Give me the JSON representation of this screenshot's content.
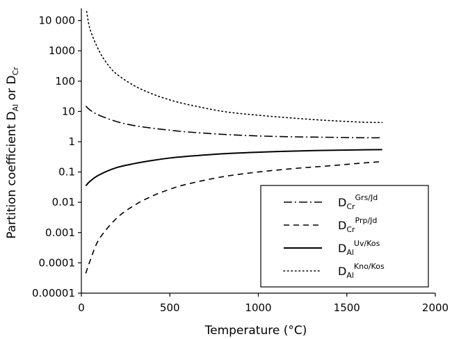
{
  "chart_data": {
    "type": "line",
    "xlabel": "Temperature (°C)",
    "ylabel": {
      "prefix": "Partition coefficient D",
      "sub1": "Al",
      "middle": " or D",
      "sub2": "Cr"
    },
    "xlim": [
      0,
      2000
    ],
    "ylim": [
      1e-05,
      30000
    ],
    "yscale": "log",
    "xticks": [
      "0",
      "500",
      "1000",
      "1500",
      "2000"
    ],
    "yticks": [
      "0.00001",
      "0.0001",
      "0.001",
      "0.01",
      "0.1",
      "1",
      "10",
      "100",
      "1000",
      "10 000"
    ],
    "xtick_values": [
      0,
      500,
      1000,
      1500,
      2000
    ],
    "ytick_values": [
      1e-05,
      0.0001,
      0.001,
      0.01,
      0.1,
      1,
      10,
      100,
      1000,
      10000
    ],
    "grid": false,
    "legend_position": "bottom-right",
    "series": [
      {
        "name": "DCr Grs/Jd",
        "legend": {
          "main": "D",
          "sub": "Cr",
          "sup": "Grs/Jd"
        },
        "style": "dash-dot",
        "x": [
          25,
          50,
          100,
          200,
          300,
          400,
          500,
          600,
          800,
          1000,
          1200,
          1400,
          1600,
          1700
        ],
        "y": [
          15,
          11,
          7.5,
          4.6,
          3.4,
          2.8,
          2.4,
          2.1,
          1.75,
          1.55,
          1.45,
          1.4,
          1.35,
          1.35
        ]
      },
      {
        "name": "DCr Prp/Jd",
        "legend": {
          "main": "D",
          "sub": "Cr",
          "sup": "Prp/Jd"
        },
        "style": "dashed",
        "x": [
          25,
          50,
          100,
          200,
          300,
          400,
          500,
          600,
          800,
          1000,
          1200,
          1400,
          1600,
          1700
        ],
        "y": [
          4.5e-05,
          0.00012,
          0.0006,
          0.003,
          0.008,
          0.016,
          0.027,
          0.04,
          0.07,
          0.1,
          0.13,
          0.16,
          0.2,
          0.22
        ]
      },
      {
        "name": "DAl Uv/Kos",
        "legend": {
          "main": "D",
          "sub": "Al",
          "sup": "Uv/Kos"
        },
        "style": "solid",
        "x": [
          25,
          50,
          100,
          200,
          300,
          400,
          500,
          600,
          800,
          1000,
          1200,
          1400,
          1600,
          1700
        ],
        "y": [
          0.035,
          0.05,
          0.08,
          0.14,
          0.19,
          0.24,
          0.29,
          0.33,
          0.4,
          0.45,
          0.49,
          0.52,
          0.54,
          0.55
        ]
      },
      {
        "name": "DAl Kno/Kos",
        "legend": {
          "main": "D",
          "sub": "Al",
          "sup": "Kno/Kos"
        },
        "style": "dotted",
        "x": [
          30,
          50,
          100,
          150,
          200,
          300,
          400,
          500,
          600,
          800,
          1000,
          1200,
          1400,
          1600,
          1700
        ],
        "y": [
          20000,
          5000,
          1000,
          350,
          170,
          70,
          38,
          24,
          17,
          10,
          7.5,
          6,
          5,
          4.4,
          4.3
        ]
      }
    ]
  }
}
